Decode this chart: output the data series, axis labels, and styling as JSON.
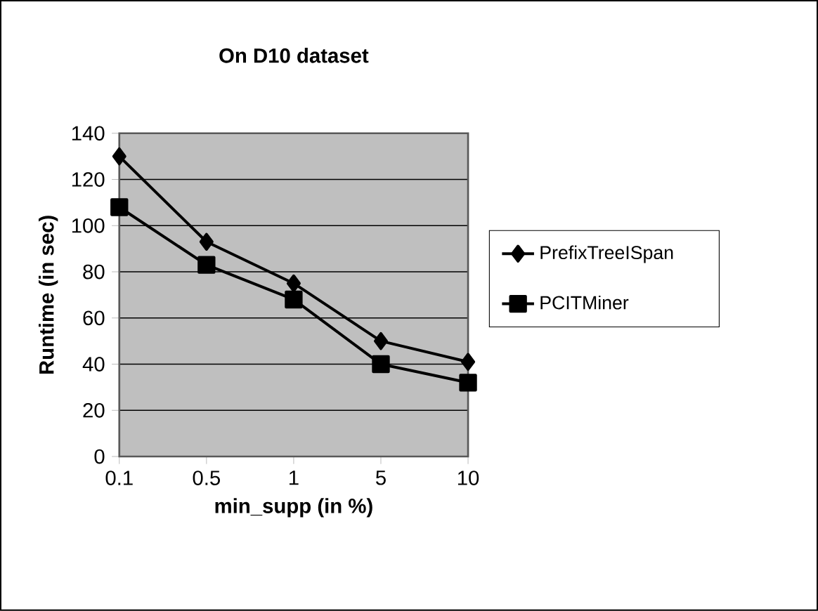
{
  "chart_data": {
    "type": "line",
    "title": "On D10 dataset",
    "xlabel": "min_supp (in %)",
    "ylabel": "Runtime (in sec)",
    "categories": [
      "0.1",
      "0.5",
      "1",
      "5",
      "10"
    ],
    "series": [
      {
        "name": "PrefixTreeISpan",
        "color": "#000000",
        "marker": "diamond",
        "values": [
          130,
          93,
          75,
          50,
          41
        ]
      },
      {
        "name": "PCITMiner",
        "color": "#000000",
        "marker": "square",
        "values": [
          108,
          83,
          68,
          40,
          32
        ]
      }
    ],
    "ylim": [
      0,
      140
    ],
    "yticks": [
      0,
      20,
      40,
      60,
      80,
      100,
      120,
      140
    ],
    "grid": "y",
    "legend": "right",
    "line_style": "solid"
  }
}
